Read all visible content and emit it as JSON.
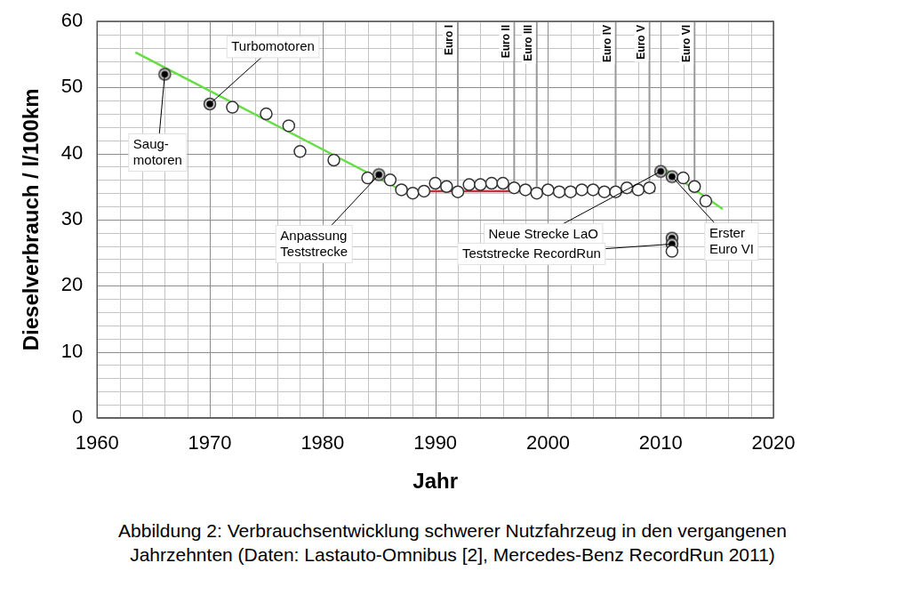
{
  "chart_data": {
    "type": "scatter",
    "x_label": "Jahr",
    "y_label": "Dieselverbrauch / l/100km",
    "xlim": [
      1960,
      2020
    ],
    "xticks": [
      1960,
      1970,
      1980,
      1990,
      2000,
      2010,
      2020
    ],
    "ylim": [
      0,
      60
    ],
    "yticks": [
      0,
      10,
      20,
      30,
      40,
      50,
      60
    ],
    "grid": true,
    "series": [
      {
        "marker": "circle_open",
        "color": "#333333",
        "x": [
          1972,
          1975,
          1977,
          1978,
          1981,
          1984,
          1986,
          1987,
          1988,
          1989,
          1990,
          1991,
          1992,
          1993,
          1994,
          1995,
          1996,
          1997,
          1998,
          1999,
          2000,
          2001,
          2002,
          2003,
          2004,
          2005,
          2006,
          2007,
          2008,
          2009,
          2012,
          2013,
          2014,
          2011
        ],
        "values": [
          47,
          46,
          44.2,
          40.3,
          39,
          36.3,
          36,
          34.5,
          34,
          34.3,
          35.5,
          35,
          34.2,
          35.3,
          35.3,
          35.5,
          35.5,
          34.8,
          34.5,
          34,
          34.5,
          34.2,
          34.2,
          34.5,
          34.5,
          34.2,
          34.2,
          34.8,
          34.5,
          34.8,
          36.3,
          35,
          32.8,
          25.2
        ]
      },
      {
        "marker": "circle_dot",
        "color": "#333333",
        "x": [
          1966,
          1970,
          1985,
          2010,
          2011,
          2011,
          2011
        ],
        "values": [
          52,
          47.5,
          36.8,
          37.3,
          36.5,
          27.2,
          26.3
        ]
      }
    ],
    "trend_lines": [
      {
        "color": "#66dd44",
        "line_style": "solid",
        "x": [
          1963.4,
          1986.6
        ],
        "values": [
          55.3,
          34.8
        ]
      },
      {
        "color": "#c83232",
        "line_style": "solid",
        "x": [
          1986.6,
          2009.5
        ],
        "values": [
          34.3,
          34.3
        ]
      },
      {
        "color": "#66dd44",
        "line_style": "solid",
        "x": [
          2010.5,
          2015.5
        ],
        "values": [
          37.5,
          31.6
        ]
      }
    ],
    "reference_lines": {
      "color": "#999999",
      "y_from": 35,
      "lines": [
        {
          "label": "Euro I",
          "x": 1992
        },
        {
          "label": "Euro II",
          "x": 1997
        },
        {
          "label": "Euro III",
          "x": 1999
        },
        {
          "label": "Euro IV",
          "x": 2006
        },
        {
          "label": "Euro V",
          "x": 2009
        },
        {
          "label": "Euro VI",
          "x": 2013
        }
      ]
    },
    "annotations": [
      {
        "text": [
          "Saug-",
          "motoren"
        ],
        "x": 1966,
        "y": 52
      },
      {
        "text": [
          "Turbomotoren"
        ],
        "x": 1970,
        "y": 47.5
      },
      {
        "text": [
          "Anpassung",
          "Teststrecke"
        ],
        "x": 1985,
        "y": 36.8
      },
      {
        "text": [
          "Neue Strecke LaO"
        ],
        "x": 2010,
        "y": 37.3
      },
      {
        "text": [
          "Teststrecke RecordRun"
        ],
        "x": 2011,
        "y": 26.3
      },
      {
        "text": [
          "Erster",
          "Euro VI"
        ],
        "x": 2011,
        "y": 36.5
      }
    ]
  },
  "caption": [
    "Abbildung 2: Verbrauchsentwicklung schwerer Nutzfahrzeug in den vergangenen",
    "Jahrzehnten (Daten: Lastauto-Omnibus [2], Mercedes-Benz RecordRun 2011)"
  ]
}
